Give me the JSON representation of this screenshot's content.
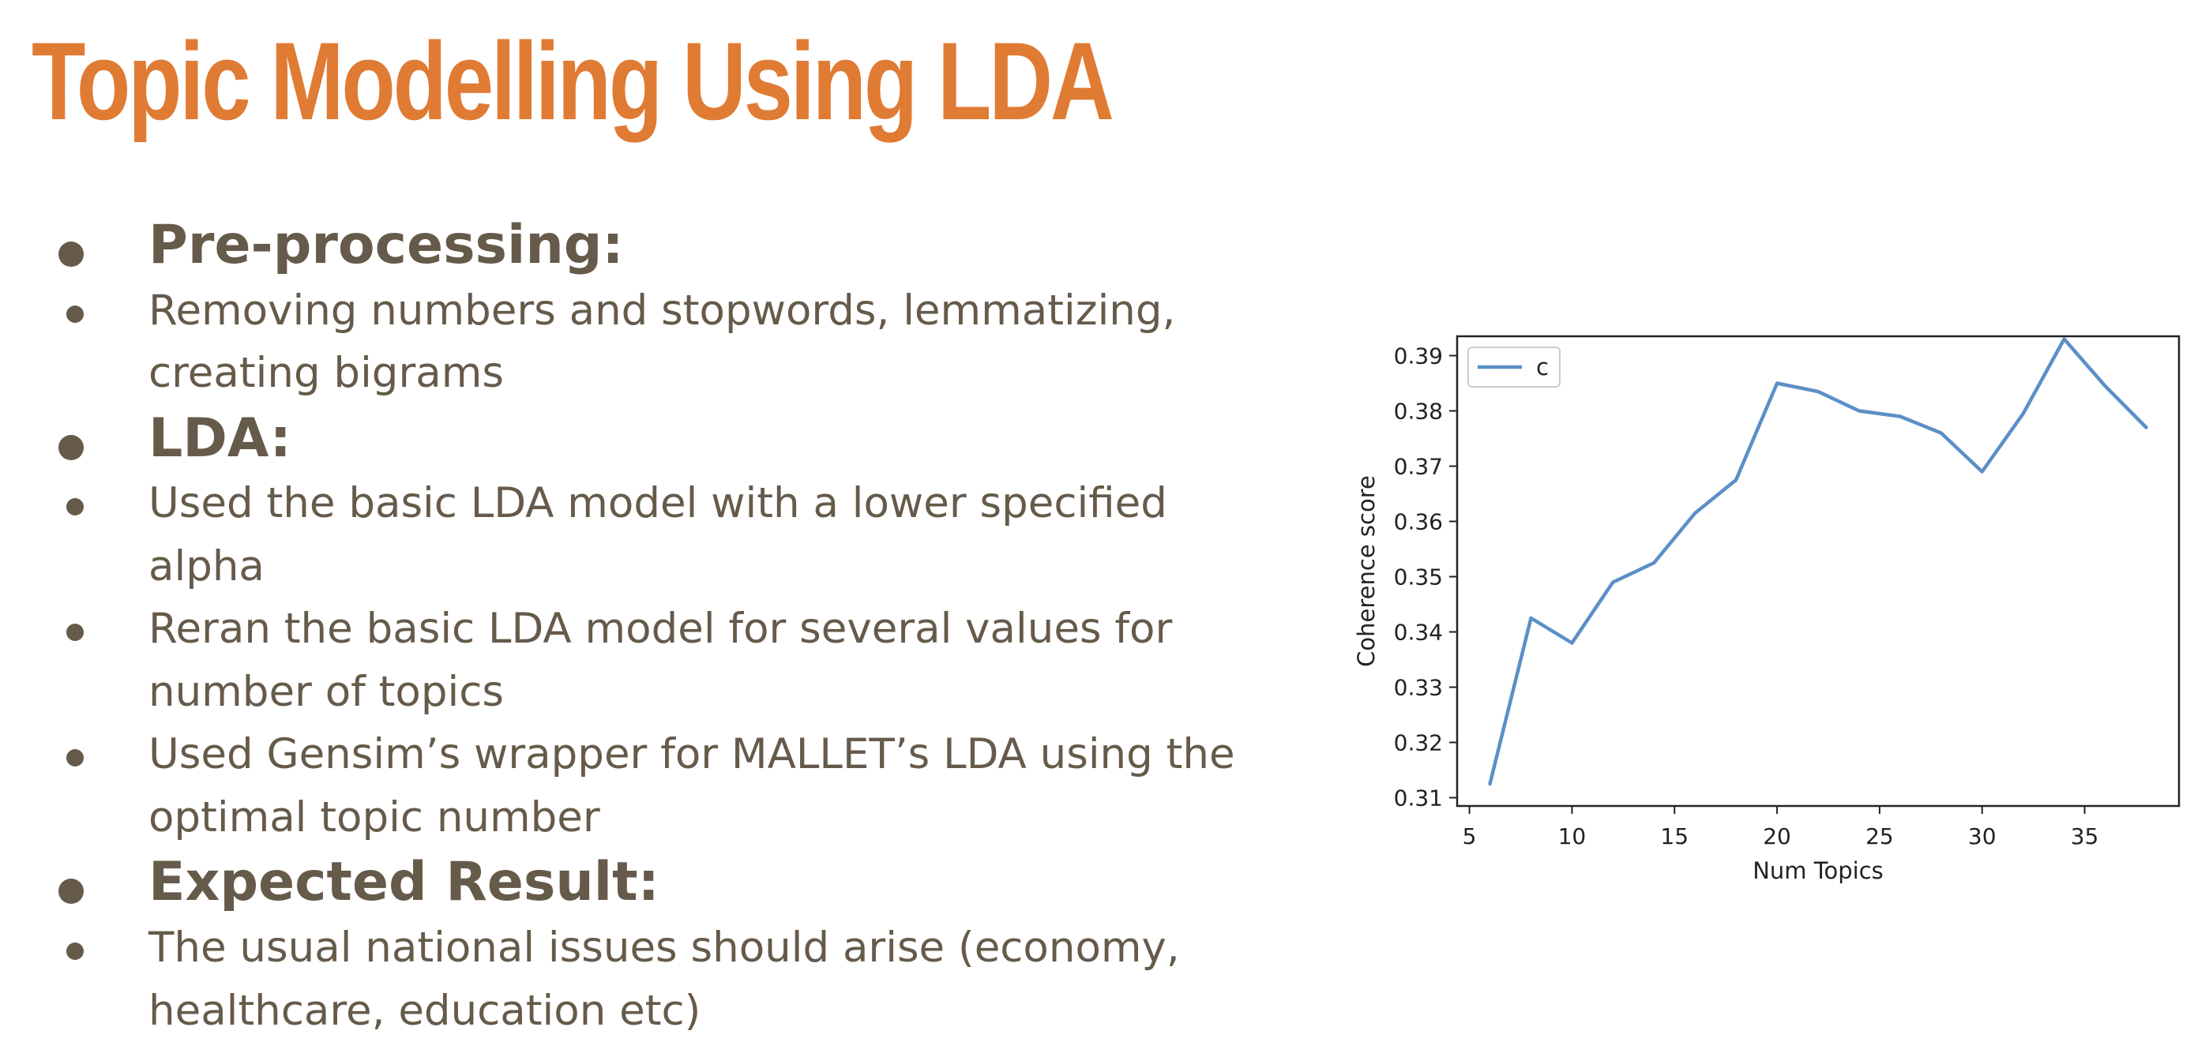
{
  "colors": {
    "title": "#e07b34",
    "body_text": "#665a4a",
    "bullet": "#665a4a",
    "line": "#5b8fc7",
    "axis": "#222222",
    "tick_text": "#222222"
  },
  "slide": {
    "title": "Topic Modelling Using LDA",
    "bullets": [
      {
        "kind": "heading",
        "text": "Pre-processing:"
      },
      {
        "kind": "item",
        "text": "Removing numbers and stopwords, lemmatizing, creating bigrams"
      },
      {
        "kind": "heading",
        "text": "LDA:"
      },
      {
        "kind": "item",
        "text": "Used the basic LDA model with a lower specified alpha"
      },
      {
        "kind": "item",
        "text": "Reran the basic LDA model for several values for number of topics"
      },
      {
        "kind": "item",
        "text": "Used Gensim’s wrapper for MALLET’s LDA using the optimal topic number"
      },
      {
        "kind": "heading",
        "text": "Expected Result:"
      },
      {
        "kind": "item",
        "text": "The usual national issues should arise (economy, healthcare, education etc)"
      }
    ]
  },
  "chart_data": {
    "type": "line",
    "title": "",
    "xlabel": "Num Topics",
    "ylabel": "Coherence score",
    "xlim": [
      4.4,
      39.6
    ],
    "ylim": [
      0.3085,
      0.3935
    ],
    "xticks": [
      5,
      10,
      15,
      20,
      25,
      30,
      35
    ],
    "xtick_labels": [
      "5",
      "10",
      "15",
      "20",
      "25",
      "30",
      "35"
    ],
    "yticks": [
      0.31,
      0.32,
      0.33,
      0.34,
      0.35,
      0.36,
      0.37,
      0.38,
      0.39
    ],
    "ytick_labels": [
      "0.31",
      "0.32",
      "0.33",
      "0.34",
      "0.35",
      "0.36",
      "0.37",
      "0.38",
      "0.39"
    ],
    "grid": false,
    "legend": "top-left",
    "series": [
      {
        "name": "c",
        "x": [
          6,
          8,
          10,
          12,
          14,
          16,
          18,
          20,
          22,
          24,
          26,
          28,
          30,
          32,
          34,
          36,
          38
        ],
        "y": [
          0.3125,
          0.3425,
          0.338,
          0.349,
          0.3525,
          0.3615,
          0.3675,
          0.385,
          0.3835,
          0.38,
          0.379,
          0.376,
          0.369,
          0.3795,
          0.393,
          0.3845,
          0.377
        ]
      }
    ]
  }
}
